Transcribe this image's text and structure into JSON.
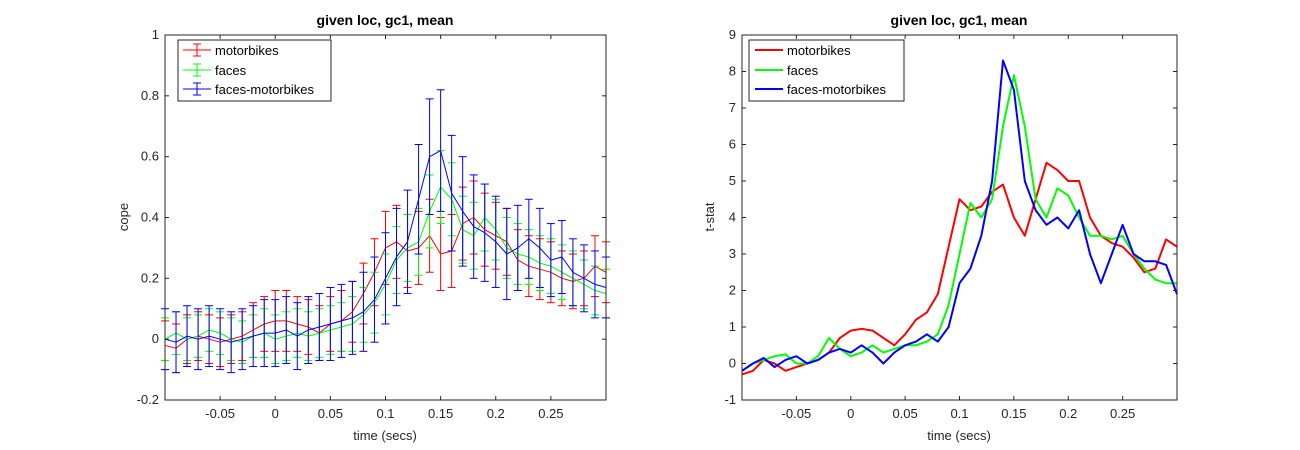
{
  "chart_data": [
    {
      "type": "line",
      "title": "given loc, gc1, mean",
      "xlabel": "time (secs)",
      "ylabel": "cope",
      "xlim": [
        -0.1,
        0.3
      ],
      "ylim": [
        -0.2,
        1.0
      ],
      "xticks": [
        -0.05,
        0,
        0.05,
        0.1,
        0.15,
        0.2,
        0.25
      ],
      "xtick_labels": [
        "-0.05",
        "0",
        "0.05",
        "0.1",
        "0.15",
        "0.2",
        "0.25"
      ],
      "yticks": [
        -0.2,
        0,
        0.2,
        0.4,
        0.6,
        0.8,
        1.0
      ],
      "ytick_labels": [
        "-0.2",
        "0",
        "0.2",
        "0.4",
        "0.6",
        "0.8",
        "1"
      ],
      "grid": false,
      "error_bars": true,
      "legend_position": "top-left",
      "series": [
        {
          "name": "motorbikes",
          "color": "#ff0000",
          "x": [
            -0.1,
            -0.09,
            -0.08,
            -0.07,
            -0.06,
            -0.05,
            -0.04,
            -0.03,
            -0.02,
            -0.01,
            0.0,
            0.01,
            0.02,
            0.03,
            0.04,
            0.05,
            0.06,
            0.07,
            0.08,
            0.09,
            0.1,
            0.11,
            0.12,
            0.13,
            0.14,
            0.15,
            0.16,
            0.17,
            0.18,
            0.19,
            0.2,
            0.21,
            0.22,
            0.23,
            0.24,
            0.25,
            0.26,
            0.27,
            0.28,
            0.29,
            0.3
          ],
          "y": [
            -0.02,
            -0.03,
            0.0,
            0.01,
            0.0,
            -0.01,
            0.0,
            0.01,
            0.03,
            0.05,
            0.06,
            0.06,
            0.05,
            0.04,
            0.02,
            0.05,
            0.06,
            0.09,
            0.15,
            0.22,
            0.3,
            0.32,
            0.29,
            0.3,
            0.34,
            0.28,
            0.29,
            0.38,
            0.4,
            0.36,
            0.34,
            0.32,
            0.26,
            0.24,
            0.23,
            0.22,
            0.2,
            0.19,
            0.2,
            0.24,
            0.22
          ],
          "error": [
            0.08,
            0.08,
            0.08,
            0.08,
            0.08,
            0.08,
            0.08,
            0.08,
            0.09,
            0.09,
            0.1,
            0.1,
            0.09,
            0.09,
            0.09,
            0.09,
            0.1,
            0.1,
            0.1,
            0.11,
            0.12,
            0.12,
            0.12,
            0.12,
            0.12,
            0.12,
            0.12,
            0.12,
            0.12,
            0.12,
            0.11,
            0.11,
            0.1,
            0.1,
            0.1,
            0.1,
            0.09,
            0.09,
            0.09,
            0.1,
            0.1
          ]
        },
        {
          "name": "faces",
          "color": "#00ff00",
          "x": [
            -0.1,
            -0.09,
            -0.08,
            -0.07,
            -0.06,
            -0.05,
            -0.04,
            -0.03,
            -0.02,
            -0.01,
            0.0,
            0.01,
            0.02,
            0.03,
            0.04,
            0.05,
            0.06,
            0.07,
            0.08,
            0.09,
            0.1,
            0.11,
            0.12,
            0.13,
            0.14,
            0.15,
            0.16,
            0.17,
            0.18,
            0.19,
            0.2,
            0.21,
            0.22,
            0.23,
            0.24,
            0.25,
            0.26,
            0.27,
            0.28,
            0.29,
            0.3
          ],
          "y": [
            0.0,
            0.02,
            0.0,
            0.01,
            0.03,
            0.02,
            0.0,
            -0.01,
            0.01,
            0.02,
            0.0,
            0.01,
            0.02,
            0.01,
            0.02,
            0.03,
            0.04,
            0.05,
            0.08,
            0.12,
            0.18,
            0.26,
            0.3,
            0.32,
            0.42,
            0.5,
            0.46,
            0.36,
            0.34,
            0.4,
            0.36,
            0.3,
            0.28,
            0.27,
            0.25,
            0.24,
            0.22,
            0.2,
            0.18,
            0.16,
            0.15
          ],
          "error": [
            0.07,
            0.07,
            0.07,
            0.07,
            0.07,
            0.07,
            0.07,
            0.07,
            0.07,
            0.08,
            0.08,
            0.08,
            0.08,
            0.08,
            0.08,
            0.08,
            0.08,
            0.09,
            0.09,
            0.1,
            0.1,
            0.11,
            0.11,
            0.11,
            0.12,
            0.12,
            0.12,
            0.11,
            0.11,
            0.11,
            0.1,
            0.1,
            0.1,
            0.09,
            0.09,
            0.09,
            0.09,
            0.09,
            0.08,
            0.08,
            0.08
          ]
        },
        {
          "name": "faces-motorbikes",
          "color": "#0000ff",
          "x": [
            -0.1,
            -0.09,
            -0.08,
            -0.07,
            -0.06,
            -0.05,
            -0.04,
            -0.03,
            -0.02,
            -0.01,
            0.0,
            0.01,
            0.02,
            0.03,
            0.04,
            0.05,
            0.06,
            0.07,
            0.08,
            0.09,
            0.1,
            0.11,
            0.12,
            0.13,
            0.14,
            0.15,
            0.16,
            0.17,
            0.18,
            0.19,
            0.2,
            0.21,
            0.22,
            0.23,
            0.24,
            0.25,
            0.26,
            0.27,
            0.28,
            0.29,
            0.3
          ],
          "y": [
            0.0,
            -0.01,
            0.01,
            0.0,
            0.01,
            0.0,
            -0.01,
            0.0,
            0.01,
            0.02,
            0.02,
            0.03,
            0.01,
            0.03,
            0.04,
            0.05,
            0.06,
            0.07,
            0.09,
            0.13,
            0.2,
            0.27,
            0.32,
            0.46,
            0.6,
            0.62,
            0.48,
            0.42,
            0.37,
            0.35,
            0.32,
            0.28,
            0.3,
            0.33,
            0.3,
            0.26,
            0.27,
            0.22,
            0.2,
            0.18,
            0.17
          ],
          "error": [
            0.1,
            0.1,
            0.1,
            0.1,
            0.1,
            0.1,
            0.1,
            0.1,
            0.1,
            0.11,
            0.11,
            0.11,
            0.11,
            0.11,
            0.11,
            0.12,
            0.12,
            0.12,
            0.13,
            0.14,
            0.15,
            0.16,
            0.17,
            0.18,
            0.19,
            0.2,
            0.19,
            0.18,
            0.17,
            0.16,
            0.15,
            0.15,
            0.14,
            0.13,
            0.13,
            0.12,
            0.12,
            0.11,
            0.11,
            0.11,
            0.1
          ]
        }
      ]
    },
    {
      "type": "line",
      "title": "given loc, gc1, mean",
      "xlabel": "time (secs)",
      "ylabel": "t-stat",
      "xlim": [
        -0.1,
        0.3
      ],
      "ylim": [
        -1,
        9
      ],
      "xticks": [
        -0.05,
        0,
        0.05,
        0.1,
        0.15,
        0.2,
        0.25
      ],
      "xtick_labels": [
        "-0.05",
        "0",
        "0.05",
        "0.1",
        "0.15",
        "0.2",
        "0.25"
      ],
      "yticks": [
        -1,
        0,
        1,
        2,
        3,
        4,
        5,
        6,
        7,
        8,
        9
      ],
      "ytick_labels": [
        "-1",
        "0",
        "1",
        "2",
        "3",
        "4",
        "5",
        "6",
        "7",
        "8",
        "9"
      ],
      "grid": false,
      "error_bars": false,
      "legend_position": "top-left",
      "series": [
        {
          "name": "motorbikes",
          "color": "#ff0000",
          "x": [
            -0.1,
            -0.09,
            -0.08,
            -0.07,
            -0.06,
            -0.05,
            -0.04,
            -0.03,
            -0.02,
            -0.01,
            0.0,
            0.01,
            0.02,
            0.03,
            0.04,
            0.05,
            0.06,
            0.07,
            0.08,
            0.09,
            0.1,
            0.11,
            0.12,
            0.13,
            0.14,
            0.15,
            0.16,
            0.17,
            0.18,
            0.19,
            0.2,
            0.21,
            0.22,
            0.23,
            0.24,
            0.25,
            0.26,
            0.27,
            0.28,
            0.29,
            0.3
          ],
          "y": [
            -0.3,
            -0.2,
            0.1,
            0.0,
            -0.2,
            -0.1,
            0.0,
            0.1,
            0.3,
            0.7,
            0.9,
            0.95,
            0.9,
            0.7,
            0.5,
            0.8,
            1.2,
            1.4,
            1.9,
            3.2,
            4.5,
            4.2,
            4.3,
            4.7,
            4.9,
            4.0,
            3.5,
            4.5,
            5.5,
            5.3,
            5.0,
            5.0,
            4.0,
            3.5,
            3.3,
            3.2,
            2.9,
            2.5,
            2.6,
            3.4,
            3.2
          ]
        },
        {
          "name": "faces",
          "color": "#00ff00",
          "x": [
            -0.1,
            -0.09,
            -0.08,
            -0.07,
            -0.06,
            -0.05,
            -0.04,
            -0.03,
            -0.02,
            -0.01,
            0.0,
            0.01,
            0.02,
            0.03,
            0.04,
            0.05,
            0.06,
            0.07,
            0.08,
            0.09,
            0.1,
            0.11,
            0.12,
            0.13,
            0.14,
            0.15,
            0.16,
            0.17,
            0.18,
            0.19,
            0.2,
            0.21,
            0.22,
            0.23,
            0.24,
            0.25,
            0.26,
            0.27,
            0.28,
            0.29,
            0.3
          ],
          "y": [
            -0.2,
            0.0,
            0.1,
            0.2,
            0.25,
            0.0,
            0.0,
            0.2,
            0.7,
            0.4,
            0.2,
            0.3,
            0.5,
            0.3,
            0.4,
            0.5,
            0.5,
            0.6,
            0.8,
            1.6,
            3.0,
            4.4,
            4.0,
            4.5,
            6.5,
            7.9,
            6.5,
            4.5,
            4.0,
            4.8,
            4.6,
            4.0,
            3.5,
            3.5,
            3.4,
            3.5,
            3.0,
            2.6,
            2.3,
            2.2,
            2.2
          ]
        },
        {
          "name": "faces-motorbikes",
          "color": "#0000ff",
          "x": [
            -0.1,
            -0.09,
            -0.08,
            -0.07,
            -0.06,
            -0.05,
            -0.04,
            -0.03,
            -0.02,
            -0.01,
            0.0,
            0.01,
            0.02,
            0.03,
            0.04,
            0.05,
            0.06,
            0.07,
            0.08,
            0.09,
            0.1,
            0.11,
            0.12,
            0.13,
            0.14,
            0.15,
            0.16,
            0.17,
            0.18,
            0.19,
            0.2,
            0.21,
            0.22,
            0.23,
            0.24,
            0.25,
            0.26,
            0.27,
            0.28,
            0.29,
            0.3
          ],
          "y": [
            -0.2,
            0.0,
            0.15,
            -0.1,
            0.1,
            0.2,
            0.0,
            0.1,
            0.3,
            0.4,
            0.3,
            0.5,
            0.3,
            0.0,
            0.3,
            0.5,
            0.6,
            0.8,
            0.6,
            1.0,
            2.2,
            2.6,
            3.5,
            5.0,
            8.3,
            7.5,
            5.0,
            4.2,
            3.8,
            4.0,
            3.7,
            4.2,
            3.0,
            2.2,
            3.0,
            3.8,
            3.0,
            2.8,
            2.8,
            2.7,
            1.9
          ]
        }
      ]
    }
  ]
}
